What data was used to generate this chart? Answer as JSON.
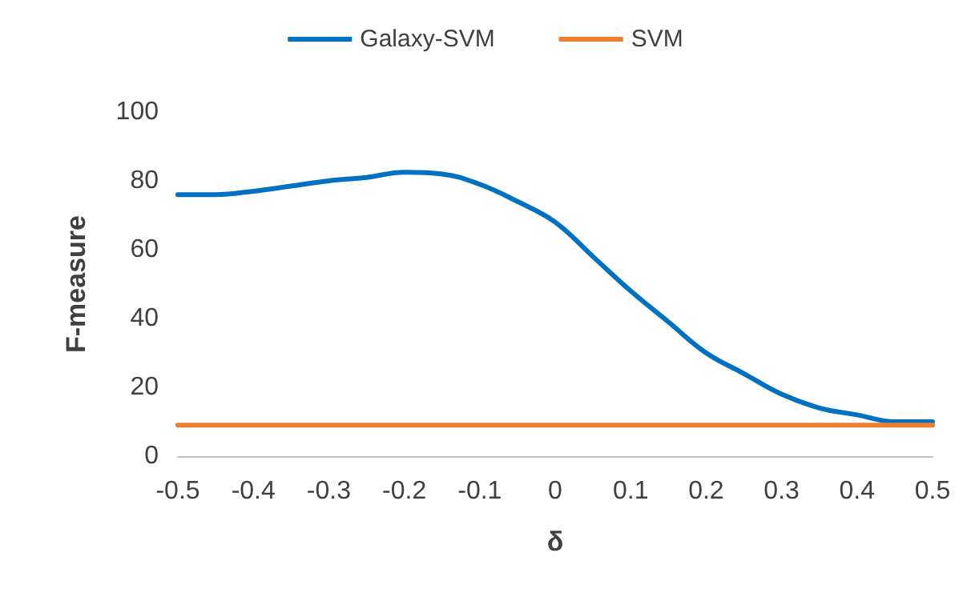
{
  "chart_data": {
    "type": "line",
    "xlabel": "δ",
    "ylabel": "F-measure",
    "x": [
      -0.5,
      -0.45,
      -0.4,
      -0.35,
      -0.3,
      -0.25,
      -0.2,
      -0.15,
      -0.1,
      -0.05,
      0,
      0.05,
      0.1,
      0.15,
      0.2,
      0.25,
      0.3,
      0.35,
      0.4,
      0.45,
      0.5
    ],
    "series": [
      {
        "name": "Galaxy-SVM",
        "color": "#0070c0",
        "values": [
          76,
          76,
          77,
          78.5,
          80,
          81,
          82.5,
          82,
          79,
          74,
          68,
          58,
          48,
          39,
          30,
          24,
          18,
          14,
          12,
          10,
          10
        ]
      },
      {
        "name": "SVM",
        "color": "#ed7d31",
        "values": [
          9,
          9,
          9,
          9,
          9,
          9,
          9,
          9,
          9,
          9,
          9,
          9,
          9,
          9,
          9,
          9,
          9,
          9,
          9,
          9,
          9
        ]
      }
    ],
    "xlim": [
      -0.5,
      0.5
    ],
    "xticks": [
      -0.5,
      -0.4,
      -0.3,
      -0.2,
      -0.1,
      0,
      0.1,
      0.2,
      0.3,
      0.4,
      0.5
    ],
    "ylim": [
      0,
      100
    ],
    "yticks": [
      0,
      20,
      40,
      60,
      80,
      100
    ],
    "grid": false,
    "legend": "top",
    "marker": "none",
    "line_style": "solid"
  }
}
